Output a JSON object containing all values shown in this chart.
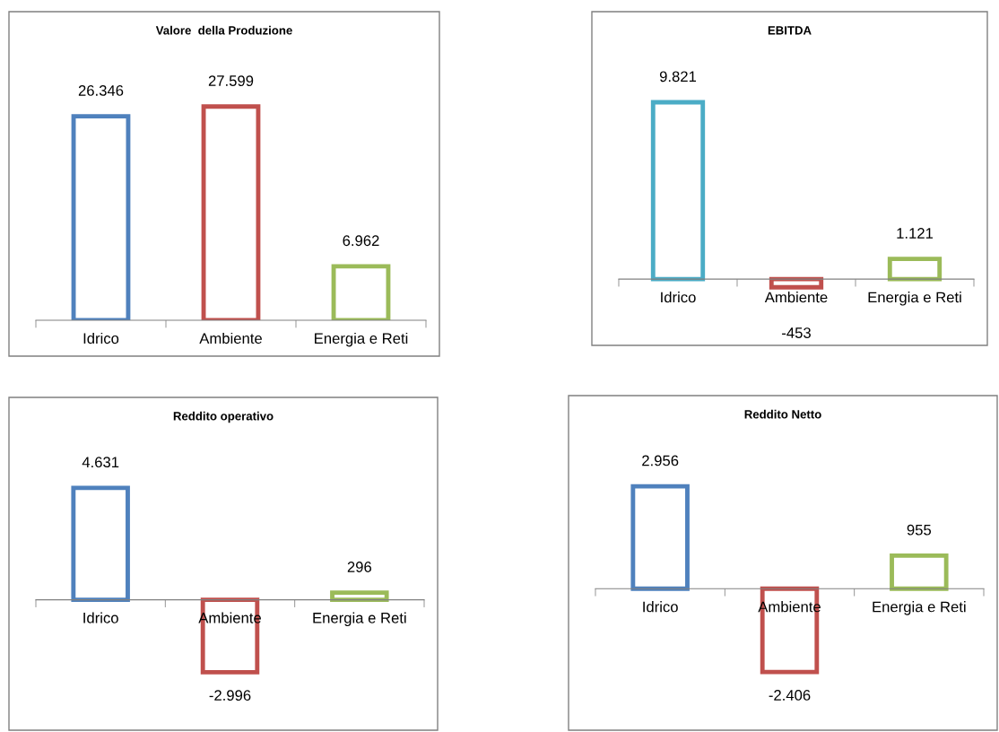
{
  "chart_data": [
    {
      "type": "bar",
      "title": "Valore  della Produzione",
      "categories": [
        "Idrico",
        "Ambiente",
        "Energia e Reti"
      ],
      "values": [
        26346,
        27599,
        6962
      ],
      "value_labels": [
        "26.346",
        "27.599",
        "6.962"
      ],
      "colors": [
        "#4f81bd",
        "#c0504d",
        "#9bbb59"
      ]
    },
    {
      "type": "bar",
      "title": "EBITDA",
      "categories": [
        "Idrico",
        "Ambiente",
        "Energia e Reti"
      ],
      "values": [
        9821,
        -453,
        1121
      ],
      "value_labels": [
        "9.821",
        "-453",
        "1.121"
      ],
      "colors": [
        "#4bacc6",
        "#c0504d",
        "#9bbb59"
      ]
    },
    {
      "type": "bar",
      "title": "Reddito operativo",
      "categories": [
        "Idrico",
        "Ambiente",
        "Energia e Reti"
      ],
      "values": [
        4631,
        -2996,
        296
      ],
      "value_labels": [
        "4.631",
        "-2.996",
        "296"
      ],
      "colors": [
        "#4f81bd",
        "#c0504d",
        "#9bbb59"
      ]
    },
    {
      "type": "bar",
      "title": "Reddito Netto",
      "categories": [
        "Idrico",
        "Ambiente",
        "Energia e Reti"
      ],
      "values": [
        2956,
        -2406,
        955
      ],
      "value_labels": [
        "2.956",
        "-2.406",
        "955"
      ],
      "colors": [
        "#4f81bd",
        "#c0504d",
        "#9bbb59"
      ]
    }
  ]
}
